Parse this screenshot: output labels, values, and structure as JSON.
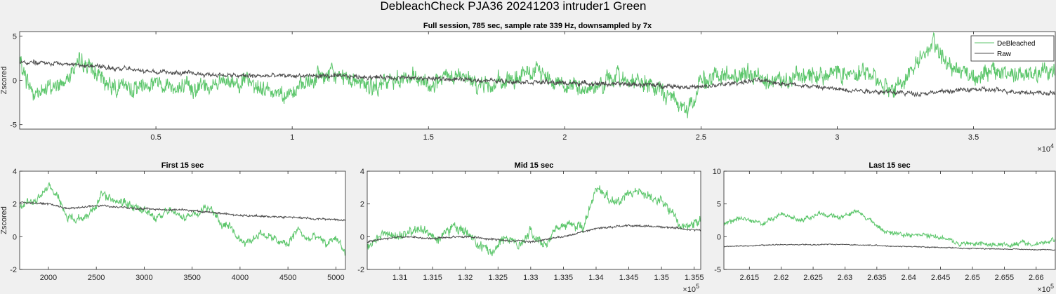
{
  "figure": {
    "suptitle": "DebleachCheck PJA36 20241203  intruder1 Green"
  },
  "colors": {
    "debleached": "#5cc66b",
    "raw": "#4d4d4d",
    "background": "#f0f0f0",
    "axes_bg": "#ffffff"
  },
  "chart_data": [
    {
      "type": "line",
      "title": "Full session, 785 sec, sample rate 339 Hz, downsampled by 7x",
      "xlabel": "",
      "ylabel": "Zscored",
      "xlim": [
        0,
        38000
      ],
      "ylim": [
        -5.5,
        5.5
      ],
      "xticks": [
        5000,
        10000,
        15000,
        20000,
        25000,
        30000,
        35000
      ],
      "xtick_labels": [
        "0.5",
        "1",
        "1.5",
        "2",
        "2.5",
        "3",
        "3.5"
      ],
      "yticks": [
        -5,
        0,
        5
      ],
      "ytick_labels": [
        "-5",
        "0",
        "5"
      ],
      "x_exponent": "4",
      "grid": false,
      "legend": "top-right",
      "series": [
        {
          "name": "DeBleached",
          "noise": 1.0,
          "x": [
            0,
            500,
            1000,
            1500,
            2000,
            2500,
            3000,
            3500,
            4000,
            5000,
            6000,
            7000,
            8000,
            9000,
            10000,
            11000,
            12000,
            13000,
            14000,
            15000,
            16000,
            17000,
            18000,
            19000,
            20000,
            21000,
            22000,
            23000,
            24000,
            24500,
            25000,
            26000,
            27000,
            28000,
            29000,
            30000,
            31000,
            32000,
            32500,
            33000,
            33500,
            34000,
            35000,
            36000,
            37000,
            38000
          ],
          "values": [
            2,
            -1.5,
            -1,
            -0.5,
            1.5,
            1.8,
            0,
            -0.5,
            -1,
            0,
            -1,
            -0.5,
            0,
            -1,
            -1.5,
            0.5,
            0.5,
            -1,
            0.5,
            -0.5,
            0.5,
            -0.5,
            0,
            1,
            -0.5,
            -1,
            0.5,
            -0.5,
            -2,
            -3.5,
            0,
            0.5,
            0.5,
            0,
            0.5,
            1,
            1,
            -1,
            0,
            2.5,
            4,
            2,
            0.5,
            1,
            0.5,
            1
          ]
        },
        {
          "name": "Raw",
          "noise": 0.25,
          "x": [
            0,
            2000,
            5000,
            8000,
            11000,
            14000,
            17000,
            20000,
            23000,
            25000,
            27000,
            30000,
            33000,
            35000,
            38000
          ],
          "values": [
            2,
            1.8,
            1,
            0.5,
            0.5,
            0.3,
            0,
            -0.3,
            -0.5,
            -0.8,
            0,
            -1,
            -1.5,
            -1,
            -1.5
          ]
        }
      ]
    },
    {
      "type": "line",
      "title": "First 15 sec",
      "xlabel": "",
      "ylabel": "Zscored",
      "xlim": [
        1700,
        5100
      ],
      "ylim": [
        -2,
        4
      ],
      "xticks": [
        2000,
        2500,
        3000,
        3500,
        4000,
        4500,
        5000
      ],
      "xtick_labels": [
        "2000",
        "2500",
        "3000",
        "3500",
        "4000",
        "4500",
        "5000"
      ],
      "yticks": [
        -2,
        0,
        2,
        4
      ],
      "ytick_labels": [
        "-2",
        "0",
        "2",
        "4"
      ],
      "x_exponent": "",
      "grid": false,
      "series": [
        {
          "name": "DeBleached",
          "noise": 0.25,
          "x": [
            1700,
            1800,
            1900,
            2000,
            2100,
            2150,
            2200,
            2300,
            2400,
            2500,
            2550,
            2600,
            2700,
            2800,
            2900,
            3000,
            3100,
            3200,
            3300,
            3400,
            3500,
            3600,
            3700,
            3800,
            3900,
            4000,
            4100,
            4200,
            4300,
            4400,
            4500,
            4600,
            4700,
            4800,
            4900,
            5000,
            5100
          ],
          "values": [
            1.8,
            2,
            2.3,
            3,
            2.5,
            1.8,
            1.2,
            1,
            1.3,
            1.8,
            2.8,
            2.4,
            2.2,
            2.1,
            1.8,
            1.6,
            1.2,
            1.4,
            1.6,
            1.2,
            1.4,
            1.6,
            1.8,
            0.8,
            0.5,
            -0.2,
            -0.3,
            0.2,
            0,
            -0.3,
            -0.5,
            0.5,
            -0.2,
            0,
            -0.5,
            0,
            -1
          ]
        },
        {
          "name": "Raw",
          "noise": 0.06,
          "x": [
            1700,
            2000,
            2200,
            2500,
            3000,
            3500,
            4000,
            4500,
            5100
          ],
          "values": [
            2.1,
            2,
            1.7,
            1.9,
            1.7,
            1.6,
            1.3,
            1.2,
            1
          ]
        }
      ]
    },
    {
      "type": "line",
      "title": "Mid 15 sec",
      "xlabel": "",
      "ylabel": "",
      "xlim": [
        130500,
        135600
      ],
      "ylim": [
        -2,
        4
      ],
      "xticks": [
        131000,
        131500,
        132000,
        132500,
        133000,
        133500,
        134000,
        134500,
        135000,
        135500
      ],
      "xtick_labels": [
        "1.31",
        "1.315",
        "1.32",
        "1.325",
        "1.33",
        "1.335",
        "1.34",
        "1.345",
        "1.35",
        "1.355"
      ],
      "yticks": [
        -2,
        0,
        2,
        4
      ],
      "ytick_labels": [
        "-2",
        "0",
        "2",
        "4"
      ],
      "x_exponent": "5",
      "grid": false,
      "series": [
        {
          "name": "DeBleached",
          "noise": 0.3,
          "x": [
            130500,
            130800,
            131000,
            131300,
            131600,
            131800,
            132000,
            132200,
            132400,
            132600,
            132800,
            133000,
            133200,
            133400,
            133600,
            133800,
            134000,
            134100,
            134300,
            134500,
            134700,
            134900,
            135100,
            135300,
            135600
          ],
          "values": [
            -0.5,
            0.2,
            0,
            0.5,
            -0.2,
            0.6,
            0.3,
            -0.6,
            -0.9,
            0,
            -0.5,
            0.3,
            -0.6,
            0.5,
            0.8,
            0.5,
            3,
            2.8,
            2,
            2.5,
            2.8,
            2.3,
            1.8,
            0.5,
            1
          ]
        },
        {
          "name": "Raw",
          "noise": 0.06,
          "x": [
            130500,
            131000,
            131500,
            132000,
            132500,
            133000,
            133500,
            134000,
            134500,
            135000,
            135600
          ],
          "values": [
            -0.3,
            0,
            -0.1,
            0,
            -0.2,
            -0.3,
            0,
            0.5,
            0.7,
            0.6,
            0.4
          ]
        }
      ]
    },
    {
      "type": "line",
      "title": "Last 15 sec",
      "xlabel": "",
      "ylabel": "",
      "xlim": [
        261100,
        266300
      ],
      "ylim": [
        -5,
        10
      ],
      "xticks": [
        261500,
        262000,
        262500,
        263000,
        263500,
        264000,
        264500,
        265000,
        265500,
        266000
      ],
      "xtick_labels": [
        "2.615",
        "2.62",
        "2.625",
        "2.63",
        "2.635",
        "2.64",
        "2.645",
        "2.65",
        "2.655",
        "2.66"
      ],
      "yticks": [
        -5,
        0,
        5,
        10
      ],
      "ytick_labels": [
        "-5",
        "0",
        "5",
        "10"
      ],
      "x_exponent": "5",
      "grid": false,
      "series": [
        {
          "name": "DeBleached",
          "noise": 0.35,
          "x": [
            261100,
            261400,
            261700,
            262000,
            262300,
            262600,
            262900,
            263200,
            263400,
            263600,
            263900,
            264200,
            264500,
            264800,
            265100,
            265400,
            265700,
            266000,
            266300
          ],
          "values": [
            2,
            3,
            2,
            3.5,
            2.5,
            3.5,
            3,
            3.8,
            2.5,
            0.8,
            0.3,
            0.3,
            0,
            -1,
            -1.2,
            -1.3,
            -1,
            -1,
            -0.5
          ]
        },
        {
          "name": "Raw",
          "noise": 0.08,
          "x": [
            261100,
            262000,
            263000,
            264000,
            265000,
            266300
          ],
          "values": [
            -1.5,
            -1.2,
            -1.2,
            -1.5,
            -1.8,
            -2
          ]
        }
      ]
    }
  ]
}
